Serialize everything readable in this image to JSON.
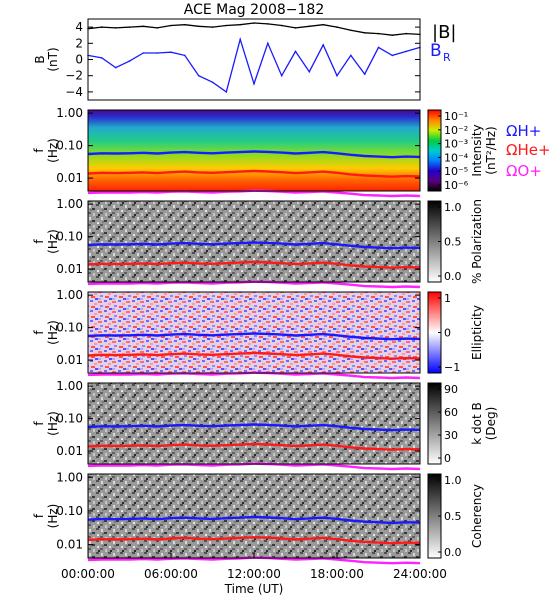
{
  "title": "ACE Mag 2008−182",
  "colors": {
    "magnitude": "#000000",
    "component": "#1a1aff",
    "h_plus": "#1a1aff",
    "he_plus": "#ff1a1a",
    "o_plus": "#ff22ff"
  },
  "chart_data": [
    {
      "id": "field",
      "type": "line",
      "title": "ACE Mag 2008−182",
      "ylabel_main": "B",
      "ylabel_unit": "(nT)",
      "y_ticks": [
        "4",
        "2",
        "0",
        "−2",
        "−4"
      ],
      "ylim": [
        -5,
        5
      ],
      "legend": [
        "|B|",
        "B",
        "R"
      ],
      "series": [
        {
          "name": "|B|",
          "x": [
            0,
            1,
            2,
            3,
            4,
            5,
            6,
            7,
            8,
            9,
            10,
            11,
            12,
            13,
            14,
            15,
            16,
            17,
            18,
            19,
            20,
            21,
            22,
            23,
            24
          ],
          "values": [
            3.8,
            4.0,
            3.9,
            4.0,
            4.1,
            3.9,
            4.2,
            4.3,
            4.1,
            4.0,
            4.2,
            4.3,
            4.5,
            4.4,
            4.2,
            3.9,
            4.1,
            4.3,
            4.0,
            3.6,
            3.3,
            3.2,
            3.0,
            3.2,
            3.1
          ]
        },
        {
          "name": "B R",
          "x": [
            0,
            1,
            2,
            3,
            4,
            5,
            6,
            7,
            8,
            9,
            10,
            11,
            12,
            13,
            14,
            15,
            16,
            17,
            18,
            19,
            20,
            21,
            22,
            23,
            24
          ],
          "values": [
            0.5,
            0.2,
            -1.0,
            -0.2,
            0.8,
            0.8,
            0.9,
            0.5,
            -2.0,
            -2.8,
            -4.0,
            2.5,
            -3.0,
            2.0,
            -2.0,
            1.0,
            -1.5,
            1.8,
            -2.0,
            0.5,
            -1.8,
            1.5,
            0.5,
            1.0,
            1.5
          ]
        }
      ]
    },
    {
      "id": "intensity",
      "type": "heatmap",
      "ylabel_main": "f",
      "ylabel_unit": "(Hz)",
      "y_ticks": [
        "1.00",
        "0.10",
        "0.01"
      ],
      "colorbar_label": "Intensity",
      "colorbar_unit": "(nT²/Hz)",
      "colorbar_ticks": [
        "10⁻¹",
        "10⁻²",
        "10⁻³",
        "10⁻⁴",
        "10⁻⁵",
        "10⁻⁶"
      ],
      "gyro_labels": {
        "h_plus": "ΩH+",
        "he_plus": "ΩHe+",
        "o_plus": "ΩO+"
      }
    },
    {
      "id": "polarization",
      "type": "heatmap",
      "ylabel_main": "f",
      "ylabel_unit": "(Hz)",
      "y_ticks": [
        "1.00",
        "0.10",
        "0.01"
      ],
      "colorbar_label": "% Polarization",
      "colorbar_ticks": [
        "1.0",
        "0.5",
        "0.0"
      ]
    },
    {
      "id": "ellipticity",
      "type": "heatmap",
      "ylabel_main": "f",
      "ylabel_unit": "(Hz)",
      "y_ticks": [
        "1.00",
        "0.10",
        "0.01"
      ],
      "colorbar_label": "Ellipticity",
      "colorbar_ticks": [
        "1",
        "0",
        "−1"
      ]
    },
    {
      "id": "kdotb",
      "type": "heatmap",
      "ylabel_main": "f",
      "ylabel_unit": "(Hz)",
      "y_ticks": [
        "1.00",
        "0.10",
        "0.01"
      ],
      "colorbar_label": "k dot B",
      "colorbar_unit": "(Deg)",
      "colorbar_ticks": [
        "90",
        "60",
        "30",
        "0"
      ]
    },
    {
      "id": "coherency",
      "type": "heatmap",
      "ylabel_main": "f",
      "ylabel_unit": "(Hz)",
      "y_ticks": [
        "1.00",
        "0.10",
        "0.01"
      ],
      "colorbar_label": "Coherency",
      "colorbar_ticks": [
        "1.0",
        "0.5",
        "0.0"
      ]
    }
  ],
  "gyrofrequencies_hz": {
    "x": [
      0,
      1,
      2,
      3,
      4,
      5,
      6,
      7,
      8,
      9,
      10,
      11,
      12,
      13,
      14,
      15,
      16,
      17,
      18,
      19,
      20,
      21,
      22,
      23,
      24
    ],
    "h_plus": [
      0.055,
      0.058,
      0.057,
      0.058,
      0.06,
      0.057,
      0.061,
      0.063,
      0.06,
      0.058,
      0.061,
      0.063,
      0.066,
      0.064,
      0.061,
      0.057,
      0.06,
      0.063,
      0.058,
      0.052,
      0.048,
      0.046,
      0.044,
      0.046,
      0.045
    ],
    "he_plus": [
      0.0138,
      0.0145,
      0.0142,
      0.0145,
      0.015,
      0.0142,
      0.0152,
      0.0158,
      0.015,
      0.0145,
      0.0152,
      0.0158,
      0.0165,
      0.016,
      0.0152,
      0.0142,
      0.015,
      0.0158,
      0.0145,
      0.013,
      0.012,
      0.0115,
      0.011,
      0.0115,
      0.0112
    ],
    "o_plus": [
      0.0035,
      0.0036,
      0.0036,
      0.0036,
      0.0037,
      0.0036,
      0.0038,
      0.0039,
      0.0037,
      0.0036,
      0.0038,
      0.0039,
      0.0041,
      0.004,
      0.0038,
      0.0036,
      0.0037,
      0.0039,
      0.0036,
      0.0033,
      0.003,
      0.0029,
      0.0028,
      0.0029,
      0.0028
    ]
  },
  "x_axis": {
    "label": "Time (UT)",
    "ticks": [
      {
        "value": 0,
        "label": "00:00:00"
      },
      {
        "value": 6,
        "label": "06:00:00"
      },
      {
        "value": 12,
        "label": "12:00:00"
      },
      {
        "value": 18,
        "label": "18:00:00"
      },
      {
        "value": 24,
        "label": "24:00:00"
      }
    ],
    "range": [
      0,
      24
    ]
  }
}
